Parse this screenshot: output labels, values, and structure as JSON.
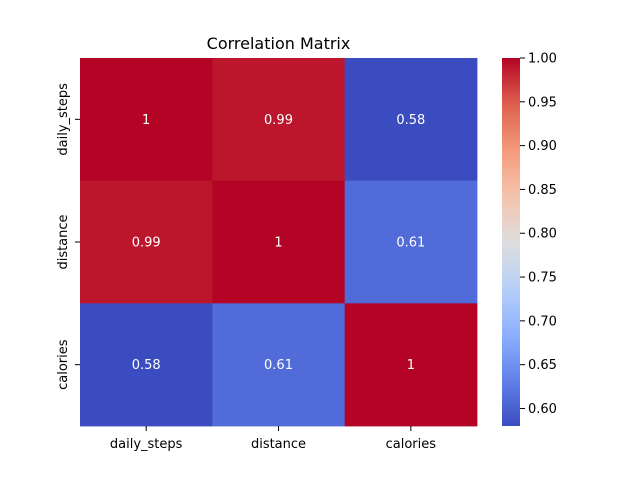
{
  "chart_data": {
    "type": "heatmap",
    "title": "Correlation Matrix",
    "x_labels": [
      "daily_steps",
      "distance",
      "calories"
    ],
    "y_labels": [
      "daily_steps",
      "distance",
      "calories"
    ],
    "values": [
      [
        1.0,
        0.99,
        0.58
      ],
      [
        0.99,
        1.0,
        0.61
      ],
      [
        0.58,
        0.61,
        1.0
      ]
    ],
    "annotations": [
      [
        "1",
        "0.99",
        "0.58"
      ],
      [
        "0.99",
        "1",
        "0.61"
      ],
      [
        "0.58",
        "0.61",
        "1"
      ]
    ],
    "colormap": "coolwarm",
    "colorbar": {
      "range": [
        0.58,
        1.0
      ],
      "ticks": [
        0.6,
        0.65,
        0.7,
        0.75,
        0.8,
        0.85,
        0.9,
        0.95,
        1.0
      ],
      "tick_labels": [
        "0.60",
        "0.65",
        "0.70",
        "0.75",
        "0.80",
        "0.85",
        "0.90",
        "0.95",
        "1.00"
      ]
    },
    "annotation_color": "#ffffff"
  }
}
